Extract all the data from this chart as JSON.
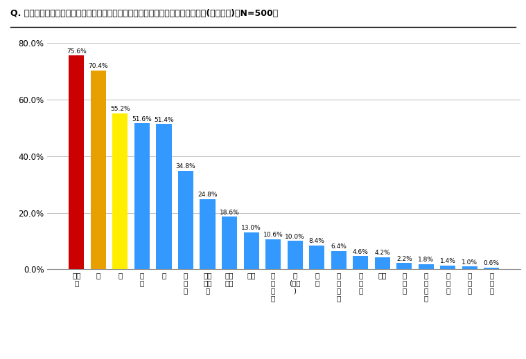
{
  "title": "Q. 秋の食べ物といえば、何を連想しますか。あてはまるものをお答えください。(複数回答)【N=500】",
  "categories": [
    "サン\nマ",
    "栗",
    "梨",
    "松\n茸",
    "柿",
    "ぶ\nど\nう",
    "サツ\nマイ\nモ",
    "ぎん\nなん",
    "ナス",
    "し\nい\nた\nけ",
    "鮭\n(サケ\n)",
    "里\n芋",
    "い\nち\nじ\nく",
    "ク\nル\nミ",
    "サバ",
    "イ\nワ\nシ",
    "れ\nん\nこ\nん",
    "さ\nく\nろ",
    "カ\nレ\nイ",
    "そ\nの\n他"
  ],
  "values": [
    75.6,
    70.4,
    55.2,
    51.6,
    51.4,
    34.8,
    24.8,
    18.6,
    13.0,
    10.6,
    10.0,
    8.4,
    6.4,
    4.6,
    4.2,
    2.2,
    1.8,
    1.4,
    1.0,
    0.6
  ],
  "colors": [
    "#cc0000",
    "#e8a000",
    "#ffee00",
    "#3399ff",
    "#3399ff",
    "#3399ff",
    "#3399ff",
    "#3399ff",
    "#3399ff",
    "#3399ff",
    "#3399ff",
    "#3399ff",
    "#3399ff",
    "#3399ff",
    "#3399ff",
    "#3399ff",
    "#3399ff",
    "#3399ff",
    "#3399ff",
    "#3399ff"
  ],
  "ylim": [
    0,
    80
  ],
  "yticks": [
    0,
    20,
    40,
    60,
    80
  ],
  "ytick_labels": [
    "0.0%",
    "20.0%",
    "40.0%",
    "60.0%",
    "80.0%"
  ],
  "background_color": "#ffffff",
  "grid_color": "#bbbbbb"
}
